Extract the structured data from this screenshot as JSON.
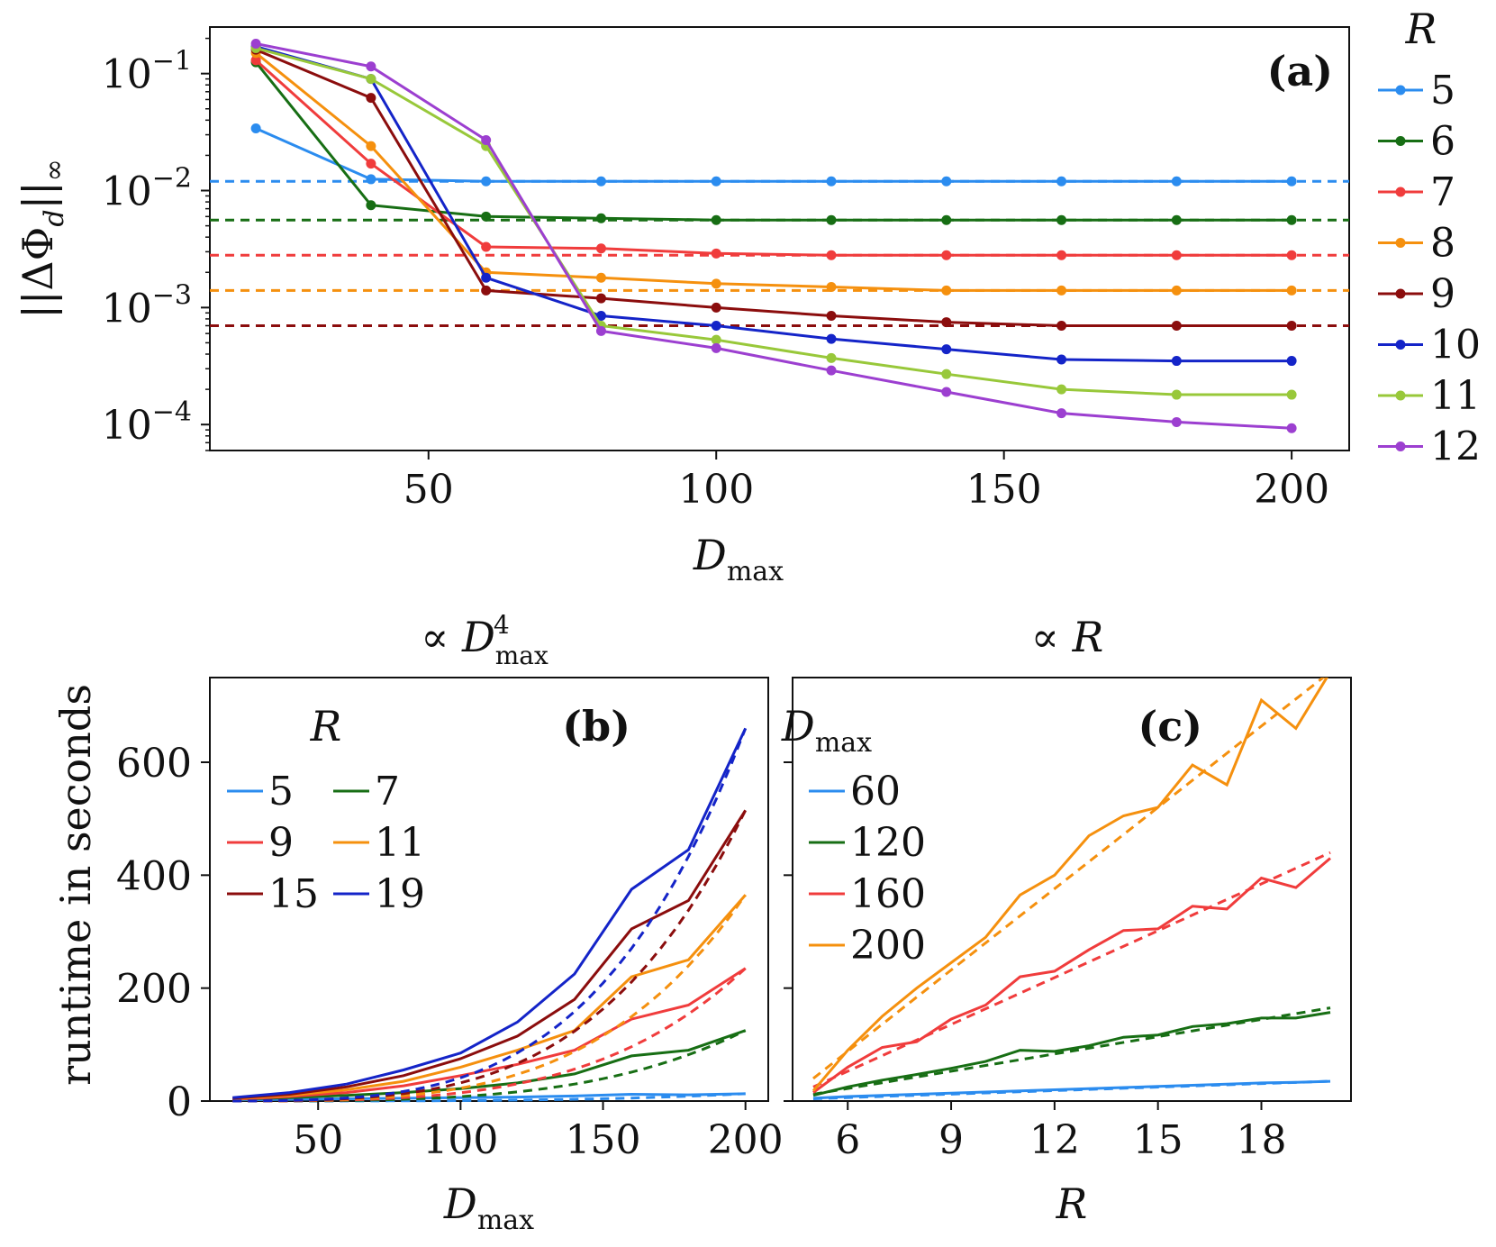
{
  "chart_data": [
    {
      "panel": "a",
      "type": "line",
      "tag": "(a)",
      "xlabel": "D_max",
      "ylabel": "||ΔΦ_d||_∞",
      "yscale": "log",
      "xlim": [
        12,
        210
      ],
      "ylim": [
        6e-05,
        0.25
      ],
      "xticks": [
        50,
        100,
        150,
        200
      ],
      "yticks": [
        {
          "value": 0.0001,
          "mantissa": "10",
          "exp": "−4"
        },
        {
          "value": 0.001,
          "mantissa": "10",
          "exp": "−3"
        },
        {
          "value": 0.01,
          "mantissa": "10",
          "exp": "−2"
        },
        {
          "value": 0.1,
          "mantissa": "10",
          "exp": "−1"
        }
      ],
      "x": [
        20,
        40,
        60,
        80,
        100,
        120,
        140,
        160,
        180,
        200
      ],
      "legend_title": "R",
      "series": [
        {
          "name": "5",
          "color": "#2b8cef",
          "values": [
            0.034,
            0.0125,
            0.012,
            0.012,
            0.012,
            0.012,
            0.012,
            0.012,
            0.012,
            0.012
          ],
          "ref": 0.012
        },
        {
          "name": "6",
          "color": "#176e14",
          "values": [
            0.125,
            0.0075,
            0.006,
            0.0058,
            0.0056,
            0.0056,
            0.0056,
            0.0056,
            0.0056,
            0.0056
          ],
          "ref": 0.0056
        },
        {
          "name": "7",
          "color": "#f03c3c",
          "values": [
            0.13,
            0.017,
            0.0033,
            0.0032,
            0.0029,
            0.0028,
            0.0028,
            0.0028,
            0.0028,
            0.0028
          ],
          "ref": 0.0028
        },
        {
          "name": "8",
          "color": "#f5900e",
          "values": [
            0.15,
            0.024,
            0.002,
            0.0018,
            0.0016,
            0.0015,
            0.0014,
            0.0014,
            0.0014,
            0.0014
          ],
          "ref": 0.0014
        },
        {
          "name": "9",
          "color": "#8b0d0d",
          "values": [
            0.16,
            0.062,
            0.0014,
            0.0012,
            0.001,
            0.00085,
            0.00075,
            0.0007,
            0.0007,
            0.0007
          ],
          "ref": 0.0007
        },
        {
          "name": "10",
          "color": "#1424c8",
          "values": [
            0.17,
            0.09,
            0.0018,
            0.00085,
            0.0007,
            0.00054,
            0.00044,
            0.00036,
            0.00035,
            0.00035
          ],
          "ref": null
        },
        {
          "name": "11",
          "color": "#98c83a",
          "values": [
            0.165,
            0.09,
            0.024,
            0.0007,
            0.00053,
            0.00037,
            0.00027,
            0.0002,
            0.00018,
            0.00018
          ],
          "ref": null
        },
        {
          "name": "12",
          "color": "#9c3fd0",
          "values": [
            0.18,
            0.115,
            0.027,
            0.00063,
            0.00045,
            0.00029,
            0.00019,
            0.000125,
            0.000105,
            9.3e-05
          ],
          "ref": null
        }
      ]
    },
    {
      "panel": "b",
      "type": "line",
      "tag": "(b)",
      "title": "∝ D_max^4",
      "xlabel": "D_max",
      "ylabel": "runtime in seconds",
      "xlim": [
        12,
        208
      ],
      "ylim": [
        0,
        750
      ],
      "xticks": [
        50,
        100,
        150,
        200
      ],
      "yticks": [
        0,
        200,
        400,
        600
      ],
      "x": [
        20,
        40,
        60,
        80,
        100,
        120,
        140,
        160,
        180,
        200
      ],
      "legend_title": "R",
      "series": [
        {
          "name": "5",
          "color": "#2b8cef",
          "values": [
            2,
            3,
            4,
            5,
            6,
            7,
            9,
            12,
            11,
            13
          ]
        },
        {
          "name": "7",
          "color": "#176e14",
          "values": [
            3,
            6,
            10,
            15,
            22,
            32,
            48,
            80,
            90,
            125
          ]
        },
        {
          "name": "9",
          "color": "#f03c3c",
          "values": [
            3,
            8,
            15,
            27,
            45,
            65,
            90,
            145,
            170,
            235
          ]
        },
        {
          "name": "11",
          "color": "#f5900e",
          "values": [
            4,
            10,
            20,
            35,
            60,
            90,
            125,
            220,
            250,
            365
          ]
        },
        {
          "name": "15",
          "color": "#8b0d0d",
          "values": [
            5,
            12,
            25,
            45,
            75,
            115,
            180,
            305,
            355,
            515
          ]
        },
        {
          "name": "19",
          "color": "#1424c8",
          "values": [
            6,
            15,
            30,
            55,
            85,
            140,
            225,
            375,
            445,
            660
          ]
        }
      ]
    },
    {
      "panel": "c",
      "type": "line",
      "tag": "(c)",
      "title": "∝ R",
      "xlabel": "R",
      "ylabel": "",
      "xlim": [
        4.4,
        20.6
      ],
      "ylim": [
        0,
        750
      ],
      "xticks": [
        6,
        9,
        12,
        15,
        18
      ],
      "yticks": [
        0,
        200,
        400,
        600
      ],
      "x": [
        5,
        6,
        7,
        8,
        9,
        10,
        11,
        12,
        13,
        14,
        15,
        16,
        17,
        18,
        19,
        20
      ],
      "legend_title": "D_max",
      "series": [
        {
          "name": "60",
          "color": "#2b8cef",
          "values": [
            5,
            8,
            10,
            12,
            14,
            16,
            18,
            20,
            22,
            24,
            26,
            28,
            30,
            32,
            33,
            35
          ],
          "fit": [
            4,
            35
          ]
        },
        {
          "name": "120",
          "color": "#176e14",
          "values": [
            10,
            25,
            37,
            47,
            58,
            70,
            90,
            88,
            98,
            113,
            117,
            132,
            137,
            147,
            147,
            157
          ],
          "fit": [
            12,
            165
          ]
        },
        {
          "name": "160",
          "color": "#f03c3c",
          "values": [
            15,
            60,
            95,
            105,
            145,
            170,
            220,
            230,
            268,
            302,
            305,
            345,
            340,
            395,
            378,
            430
          ],
          "fit": [
            25,
            440
          ]
        },
        {
          "name": "200",
          "color": "#f5900e",
          "values": [
            18,
            90,
            150,
            200,
            245,
            290,
            365,
            400,
            470,
            505,
            520,
            595,
            560,
            710,
            660,
            760
          ],
          "fit": [
            40,
            760
          ]
        }
      ]
    }
  ]
}
